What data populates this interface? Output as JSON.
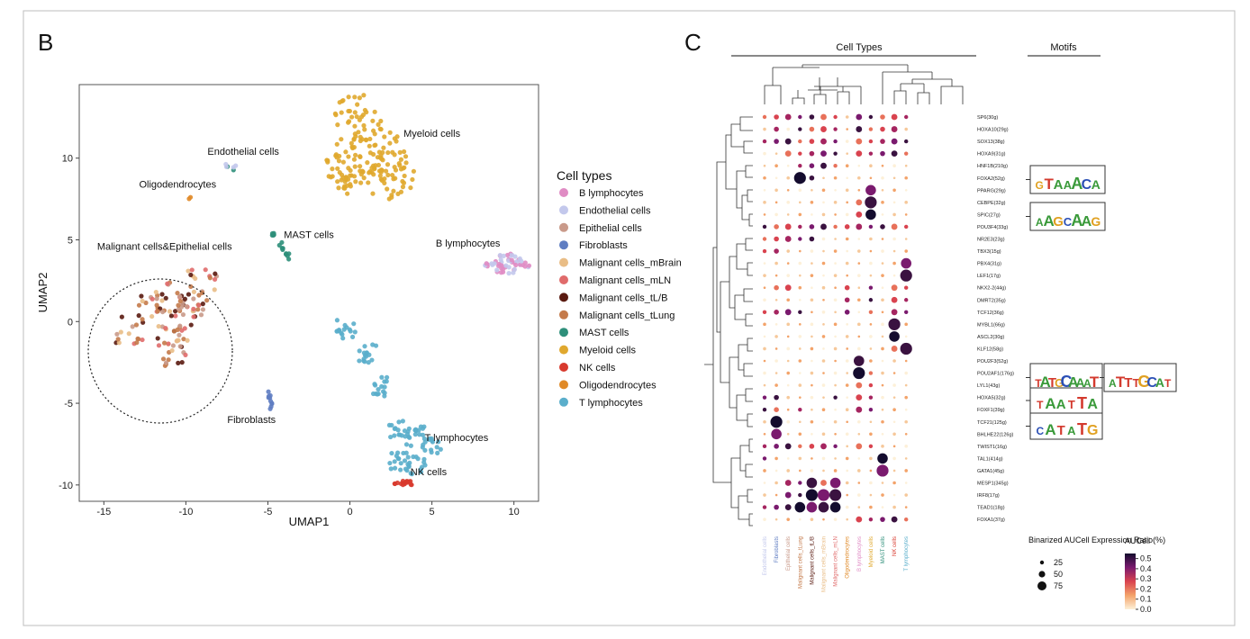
{
  "panels": {
    "left_letter": "B",
    "right_letter": "C"
  },
  "colors": {
    "B lymphocytes": "#e08cc4",
    "Endothelial cells": "#c3c8ec",
    "Epithelial cells": "#c99a8a",
    "Fibroblasts": "#5f7dc2",
    "Malignant cells_mBrain": "#e9bd86",
    "Malignant cells_mLN": "#e06b6b",
    "Malignant cells_tL/B": "#5a1a10",
    "Malignant cells_tLung": "#c47a4a",
    "MAST cells": "#2e8f7a",
    "Myeloid cells": "#e0a82e",
    "NK cells": "#d83a2e",
    "Oligodendrocytes": "#e08a28",
    "T lymphocytes": "#5aaecb"
  },
  "chart_data": [
    {
      "type": "scatter",
      "xlabel": "UMAP1",
      "ylabel": "UMAP2",
      "xlim": [
        -16.5,
        11.5
      ],
      "ylim": [
        -11,
        14.5
      ],
      "xticks": [
        -15,
        -10,
        -5,
        0,
        5,
        10
      ],
      "yticks": [
        -10,
        -5,
        0,
        5,
        10
      ],
      "grid": false,
      "legend": {
        "title": "Cell types",
        "position": "right",
        "entries": [
          "B lymphocytes",
          "Endothelial cells",
          "Epithelial cells",
          "Fibroblasts",
          "Malignant cells_mBrain",
          "Malignant cells_mLN",
          "Malignant cells_tL/B",
          "Malignant cells_tLung",
          "MAST cells",
          "Myeloid cells",
          "NK cells",
          "Oligodendrocytes",
          "T lymphocytes"
        ]
      },
      "clusters": [
        {
          "label": "Myeloid cells",
          "label_xy": [
            5,
            11.3
          ],
          "points": [
            [
              -0.6,
              9
            ],
            [
              0,
              13
            ],
            [
              1,
              12
            ],
            [
              2,
              11
            ],
            [
              2.6,
              9.5
            ],
            [
              3,
              8.5
            ],
            [
              1.5,
              9.5
            ],
            [
              0.5,
              8.8
            ],
            [
              -0.2,
              10.5
            ]
          ]
        },
        {
          "label": "Endothelial cells",
          "label_xy": [
            -6.5,
            10.2
          ],
          "points": [
            [
              -7.4,
              9.6
            ],
            [
              -7.1,
              9.4
            ]
          ]
        },
        {
          "label": "Oligodendrocytes",
          "label_xy": [
            -10.5,
            8.2
          ],
          "points": [
            [
              -9.8,
              7.6
            ]
          ]
        },
        {
          "label": "MAST cells",
          "label_xy": [
            -2.5,
            5.1
          ],
          "points": [
            [
              -4.7,
              5.2
            ],
            [
              -4.2,
              4.6
            ],
            [
              -3.8,
              4.0
            ]
          ]
        },
        {
          "label": "B lymphocytes",
          "label_xy": [
            7.2,
            4.6
          ],
          "points": [
            [
              8.8,
              3.6
            ],
            [
              9.6,
              3.9
            ],
            [
              10.4,
              3.6
            ],
            [
              9.5,
              3.2
            ]
          ]
        },
        {
          "label": "Malignant cells&Epithelial cells",
          "label_xy": [
            -11.3,
            4.4
          ],
          "points": [
            [
              -12,
              0.8
            ],
            [
              -11,
              1.5
            ],
            [
              -10,
              0.2
            ],
            [
              -11,
              -1
            ],
            [
              -10.5,
              -2
            ],
            [
              -9.5,
              1
            ],
            [
              -9,
              2.5
            ],
            [
              -13.5,
              -0.5
            ]
          ]
        },
        {
          "label": "Fibroblasts",
          "label_xy": [
            -6,
            -6.2
          ],
          "points": [
            [
              -4.9,
              -4.5
            ],
            [
              -4.8,
              -5.1
            ]
          ]
        },
        {
          "label": "T lymphocytes",
          "label_xy": [
            6.5,
            -7.3
          ],
          "points": [
            [
              -0.2,
              -0.5
            ],
            [
              1,
              -2
            ],
            [
              2,
              -4
            ],
            [
              3,
              -6.5
            ],
            [
              4,
              -7
            ],
            [
              5,
              -7.5
            ],
            [
              3,
              -8.5
            ],
            [
              4,
              -8.8
            ]
          ]
        },
        {
          "label": "NK cells",
          "label_xy": [
            4.8,
            -9.4
          ],
          "points": [
            [
              3,
              -9.8
            ],
            [
              3.6,
              -9.9
            ]
          ]
        }
      ]
    },
    {
      "type": "dot_heatmap",
      "header_left": "Cell Types",
      "header_right": "Motifs",
      "columns": [
        "Endothelial cells",
        "Fibroblasts",
        "Epithelial cells",
        "Malignant cells_tLung",
        "Malignant cells_tL/B",
        "Malignant cells_mBrain",
        "Malignant cells_mLN",
        "Oligodendrocytes",
        "B lymphocytes",
        "Myeloid cells",
        "MAST cells",
        "NK cells",
        "T lymphocytes"
      ],
      "rows": [
        "SP6(30g)",
        "HOXA10(29g)",
        "SOX13(38g)",
        "HOXA9(31g)",
        "HNF1B(210g)",
        "FOXA2(52g)",
        "PPARG(29g)",
        "CEBPE(32g)",
        "SPIC(27g)",
        "POU3F4(33g)",
        "NR2E3(23g)",
        "TBX3(15g)",
        "PBX4(31g)",
        "LEF1(17g)",
        "NKX2-2(44g)",
        "DMRT2(35g)",
        "TCF12(36g)",
        "MYBL1(66g)",
        "ASCL2(30g)",
        "KLF12(58g)",
        "POU2F3(52g)",
        "POU2AF1(176g)",
        "LYL1(43g)",
        "HOXA5(32g)",
        "FOXF1(39g)",
        "TCF21(125g)",
        "BHLHE22(126g)",
        "TWIST1(16g)",
        "TAL1(414g)",
        "GATA1(45g)",
        "MESP1(345g)",
        "IRF8(17g)",
        "TEAD1(18g)",
        "FOXA1(37g)"
      ],
      "size_legend": {
        "title": "Binarized AUCell\nExpression Ratio(%)",
        "values": [
          25,
          50,
          75
        ]
      },
      "color_legend": {
        "title": "AUCell",
        "ticks": [
          0.0,
          0.1,
          0.2,
          0.3,
          0.4,
          0.5
        ]
      },
      "motifs": [
        "GTAAACA",
        "AAGCAAG",
        "TATGCAAAT",
        "ATTTGCAT",
        "TAATTA",
        "CATATG"
      ]
    }
  ],
  "legend_texts": {
    "B lymphocytes": "B lymphocytes",
    "Endothelial cells": "Endothelial cells",
    "Epithelial cells": "Epithelial cells",
    "Fibroblasts": "Fibroblasts",
    "Malignant cells_mBrain": "Malignant cells_mBrain",
    "Malignant cells_mLN": "Malignant cells_mLN",
    "Malignant cells_tL/B": "Malignant cells_tL/B",
    "Malignant cells_tLung": "Malignant cells_tLung",
    "MAST cells": "MAST cells",
    "Myeloid cells": "Myeloid cells",
    "NK cells": "NK cells",
    "Oligodendrocytes": "Oligodendrocytes",
    "T lymphocytes": "T lymphocytes"
  }
}
